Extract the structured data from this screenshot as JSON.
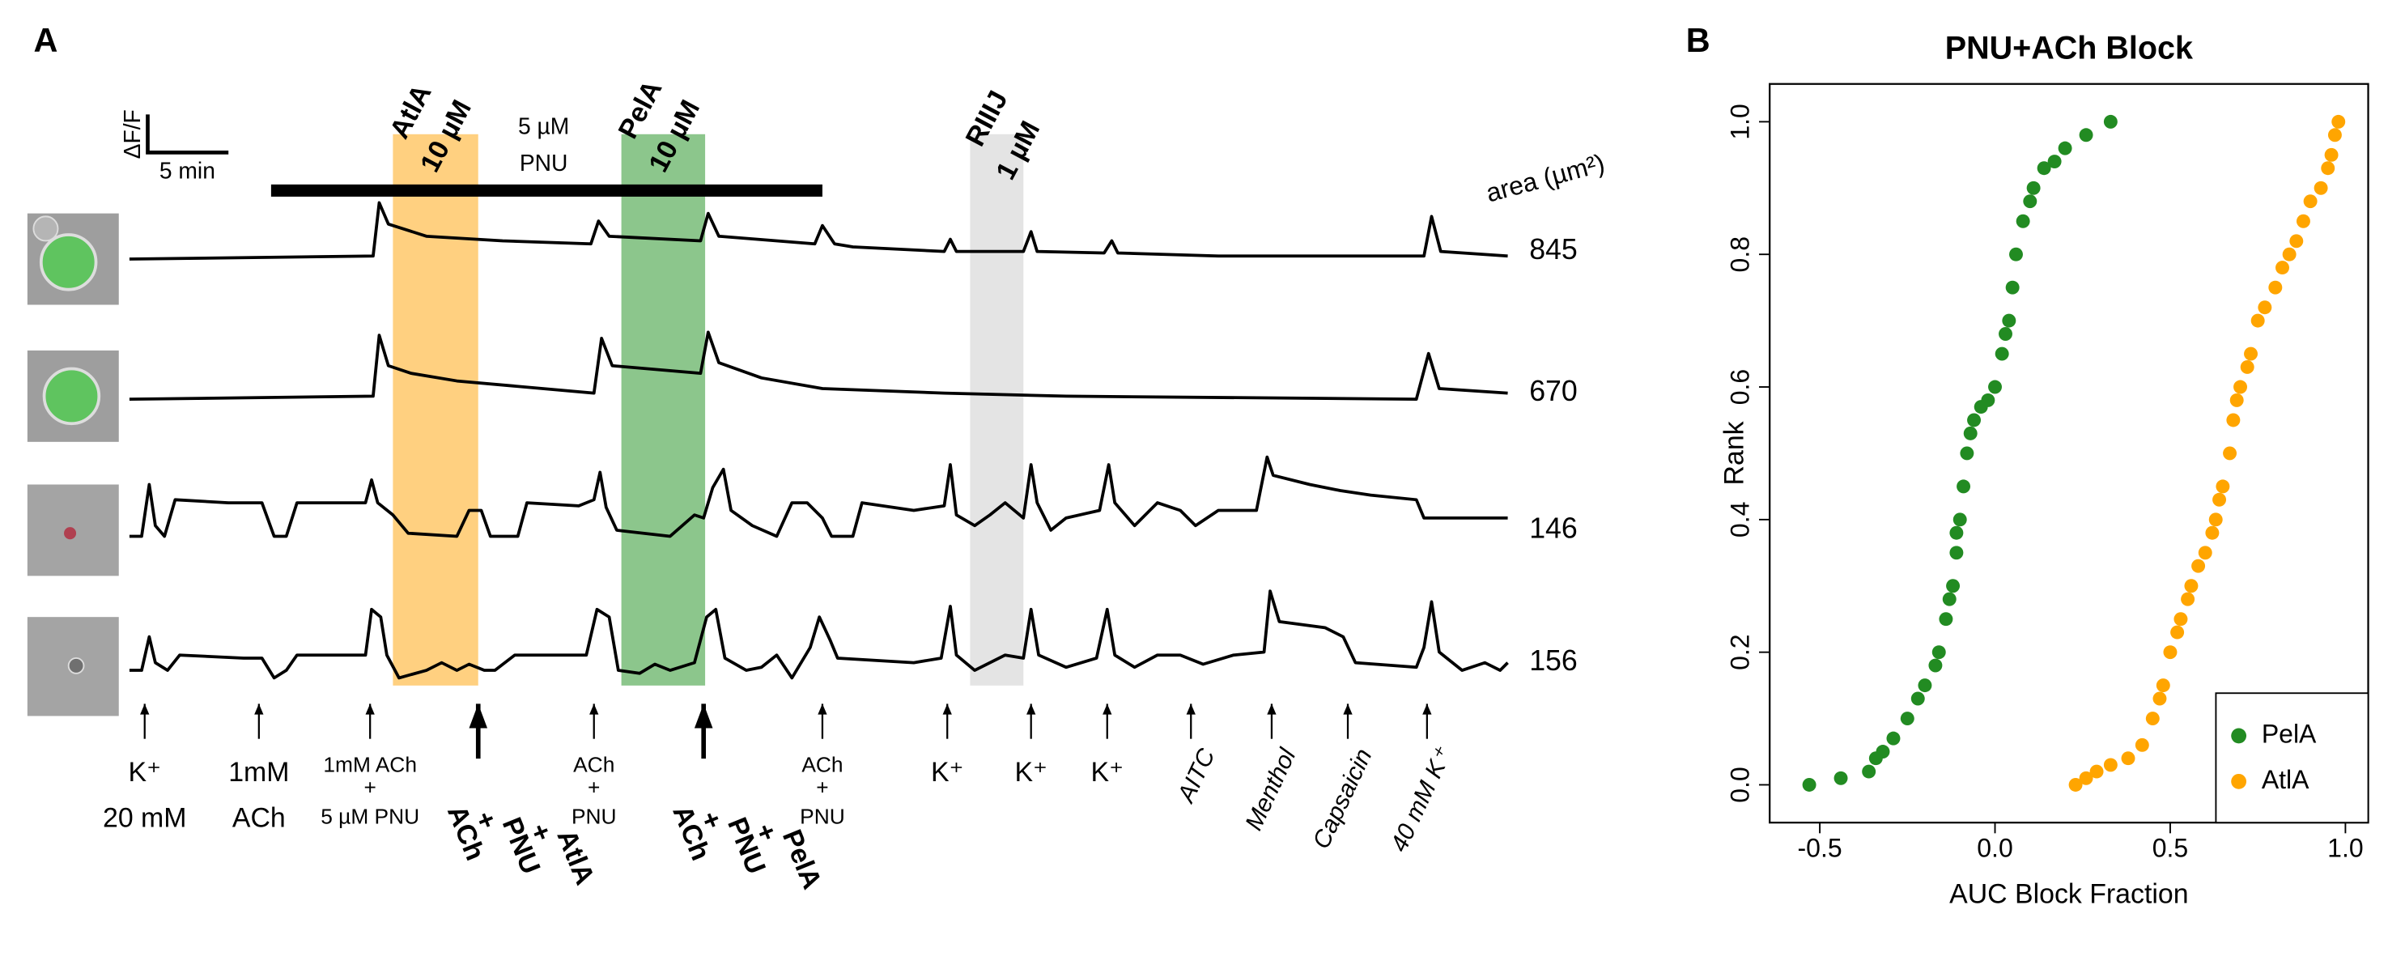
{
  "panel_a": {
    "label": "A",
    "scale_bar": {
      "y": "ΔF/F",
      "x": "5 min"
    },
    "pnu_bar": [
      "5 µM",
      "PNU"
    ],
    "applications": [
      {
        "name": "AtlA",
        "dose": "10 µM"
      },
      {
        "name": "PelA",
        "dose": "10 µM"
      },
      {
        "name": "RIIIJ",
        "dose": "1 µM"
      }
    ],
    "area_header": "area (µm²)",
    "areas": [
      845,
      670,
      146,
      156
    ],
    "stimuli": [
      [
        "K⁺",
        "20 mM"
      ],
      [
        "1mM",
        "ACh"
      ],
      [
        "1mM ACh",
        "+",
        "5 µM PNU"
      ],
      [
        "ACh",
        "+",
        "PNU",
        "+",
        "AtlA"
      ],
      [
        "ACh",
        "+",
        "PNU"
      ],
      [
        "ACh",
        "+",
        "PNU",
        "+",
        "PelA"
      ],
      [
        "ACh",
        "+",
        "PNU"
      ],
      [
        "K⁺"
      ],
      [
        "K⁺"
      ],
      [
        "K⁺"
      ],
      [
        "AITC"
      ],
      [
        "Menthol"
      ],
      [
        "Capsaicin"
      ],
      [
        "40 mM K⁺"
      ]
    ]
  },
  "panel_b_label": "B",
  "chart_data": {
    "type": "scatter",
    "title": "PNU+ACh Block",
    "x_label": "AUC Block Fraction",
    "y_label": "Rank",
    "xlim": [
      -0.643,
      1.065
    ],
    "ylim": [
      -0.057,
      1.057
    ],
    "xticks": [
      -0.5,
      {
        "value": 0,
        "label": "0.0"
      },
      0.5,
      {
        "value": 1,
        "label": "1.0"
      }
    ],
    "yticks": [
      {
        "value": 0,
        "label": "0.0"
      },
      0.2,
      0.4,
      0.6,
      0.8,
      {
        "value": 1,
        "label": "1.0"
      }
    ],
    "legend": "bottom-right",
    "series": [
      {
        "name": "PelA",
        "color": "#228b22",
        "x": [
          -0.53,
          -0.44,
          -0.36,
          -0.34,
          -0.32,
          -0.29,
          -0.25,
          -0.22,
          -0.2,
          -0.17,
          -0.16,
          -0.14,
          -0.13,
          -0.12,
          -0.11,
          -0.11,
          -0.1,
          -0.09,
          -0.08,
          -0.07,
          -0.06,
          -0.04,
          -0.02,
          0.0,
          0.02,
          0.03,
          0.04,
          0.05,
          0.06,
          0.08,
          0.1,
          0.11,
          0.14,
          0.17,
          0.2,
          0.26,
          0.33
        ],
        "values": [
          0,
          0.01,
          0.02,
          0.04,
          0.05,
          0.07,
          0.1,
          0.13,
          0.15,
          0.18,
          0.2,
          0.25,
          0.28,
          0.3,
          0.35,
          0.38,
          0.4,
          0.45,
          0.5,
          0.53,
          0.55,
          0.57,
          0.58,
          0.6,
          0.65,
          0.68,
          0.7,
          0.75,
          0.8,
          0.85,
          0.88,
          0.9,
          0.93,
          0.94,
          0.96,
          0.98,
          1.0
        ]
      },
      {
        "name": "AtlA",
        "color": "#ffa500",
        "x": [
          0.23,
          0.26,
          0.29,
          0.33,
          0.38,
          0.42,
          0.45,
          0.47,
          0.48,
          0.5,
          0.52,
          0.53,
          0.55,
          0.56,
          0.58,
          0.6,
          0.62,
          0.63,
          0.64,
          0.65,
          0.67,
          0.68,
          0.69,
          0.7,
          0.72,
          0.73,
          0.75,
          0.77,
          0.8,
          0.82,
          0.84,
          0.86,
          0.88,
          0.9,
          0.93,
          0.95,
          0.96,
          0.97,
          0.98
        ],
        "values": [
          0,
          0.01,
          0.02,
          0.03,
          0.04,
          0.06,
          0.1,
          0.13,
          0.15,
          0.2,
          0.23,
          0.25,
          0.28,
          0.3,
          0.33,
          0.35,
          0.38,
          0.4,
          0.43,
          0.45,
          0.5,
          0.55,
          0.58,
          0.6,
          0.63,
          0.65,
          0.7,
          0.72,
          0.75,
          0.78,
          0.8,
          0.82,
          0.85,
          0.88,
          0.9,
          0.93,
          0.95,
          0.98,
          1.0
        ]
      }
    ]
  }
}
